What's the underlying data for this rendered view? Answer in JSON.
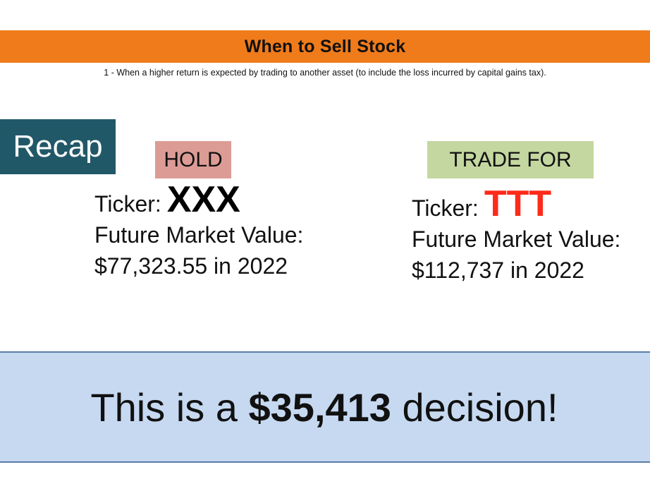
{
  "slide": {
    "title": "When to Sell Stock",
    "subtitle": "1 - When a higher return is expected by trading to another asset (to include the loss incurred by capital gains tax).",
    "recap_label": "Recap"
  },
  "hold": {
    "tag": "HOLD",
    "ticker_label": "Ticker:",
    "ticker": "XXX",
    "value_label": "Future Market Value:",
    "value": "$77,323.55 in 2022"
  },
  "trade": {
    "tag": "TRADE FOR",
    "ticker_label": "Ticker:",
    "ticker": "TTT",
    "value_label": "Future Market Value:",
    "value": "$112,737 in 2022"
  },
  "decision": {
    "prefix": "This is a ",
    "amount": "$35,413",
    "suffix": " decision!"
  },
  "colors": {
    "banner": "#f07b1a",
    "recap": "#215868",
    "hold_tag": "#dc9c95",
    "trade_tag": "#c4d7a0",
    "trade_ticker": "#ff2a1a",
    "decision_box": "#c6d9f1"
  }
}
